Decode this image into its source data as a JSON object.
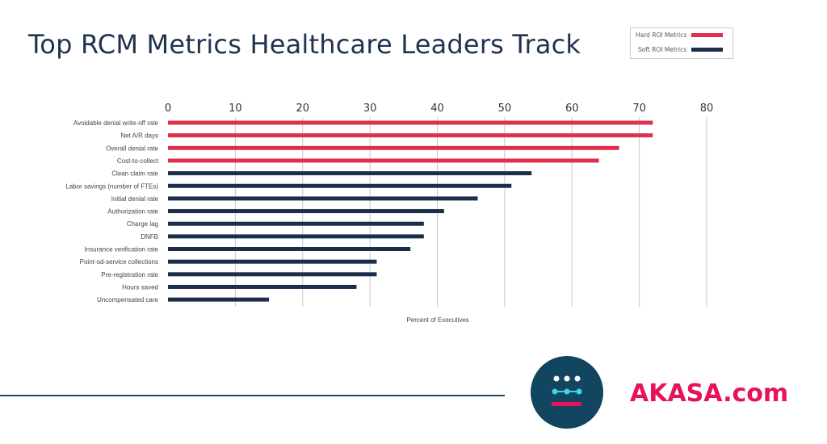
{
  "title": "Top RCM Metrics Healthcare Leaders Track",
  "brand": "AKASA.com",
  "colors": {
    "hard": "#e0304e",
    "soft": "#1c2e4a",
    "title": "#1f3350",
    "brand": "#e8115b",
    "logo_bg": "#124560",
    "logo_cyan": "#3fd5e8"
  },
  "chart_data": {
    "type": "bar",
    "orientation": "horizontal",
    "title": "Top RCM Metrics Healthcare Leaders Track",
    "xlabel": "Percent of Executives",
    "ylabel": "",
    "xlim": [
      0,
      80
    ],
    "ticks": [
      "0",
      "10",
      "20",
      "30",
      "40",
      "50",
      "60",
      "70",
      "80"
    ],
    "grid": true,
    "legend_placement": "top-right",
    "legend": [
      {
        "name": "Hard ROI Metrics",
        "color": "#e0304e"
      },
      {
        "name": "Soft ROI Metrics",
        "color": "#1c2e4a"
      }
    ],
    "categories": [
      "Avoidable denial write-off rate",
      "Net A/R days",
      "Overall denial rate",
      "Cost-to-collect",
      "Clean claim rate",
      "Labor savings (number of FTEs)",
      "Initial denial rate",
      "Authorization rate",
      "Charge lag",
      "DNFB",
      "Insurance verification rate",
      "Point-od-service collections",
      "Pre-registration rate",
      "Hours saved",
      "Uncompensated care"
    ],
    "values": [
      72,
      72,
      67,
      64,
      54,
      51,
      46,
      41,
      38,
      38,
      36,
      31,
      31,
      28,
      15
    ],
    "group": [
      "Hard ROI Metrics",
      "Hard ROI Metrics",
      "Hard ROI Metrics",
      "Hard ROI Metrics",
      "Soft ROI Metrics",
      "Soft ROI Metrics",
      "Soft ROI Metrics",
      "Soft ROI Metrics",
      "Soft ROI Metrics",
      "Soft ROI Metrics",
      "Soft ROI Metrics",
      "Soft ROI Metrics",
      "Soft ROI Metrics",
      "Soft ROI Metrics",
      "Soft ROI Metrics"
    ]
  }
}
